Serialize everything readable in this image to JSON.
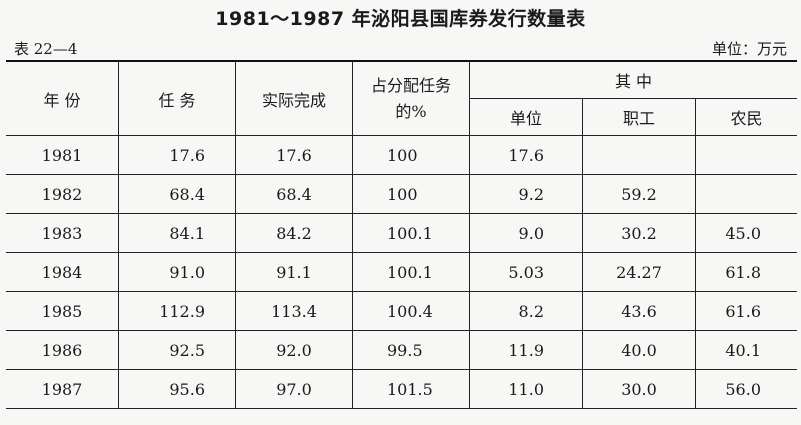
{
  "title": "1981～1987 年泌阳县国库券发行数量表",
  "table_no": "表 22—4",
  "unit": "单位：万元",
  "headers": {
    "year": "年 份",
    "task": "任 务",
    "done": "实际完成",
    "pct": "占分配任务的%",
    "among": "其 中",
    "unit_col": "单位",
    "staff": "职工",
    "farmer": "农民"
  },
  "rows": [
    {
      "year": "1981",
      "task": "17.6",
      "done": "17.6",
      "pct": "100",
      "unit": "17.6",
      "staff": "",
      "farmer": ""
    },
    {
      "year": "1982",
      "task": "68.4",
      "done": "68.4",
      "pct": "100",
      "unit": "9.2",
      "staff": "59.2",
      "farmer": ""
    },
    {
      "year": "1983",
      "task": "84.1",
      "done": "84.2",
      "pct": "100.1",
      "unit": "9.0",
      "staff": "30.2",
      "farmer": "45.0"
    },
    {
      "year": "1984",
      "task": "91.0",
      "done": "91.1",
      "pct": "100.1",
      "unit": "5.03",
      "staff": "24.27",
      "farmer": "61.8"
    },
    {
      "year": "1985",
      "task": "112.9",
      "done": "113.4",
      "pct": "100.4",
      "unit": "8.2",
      "staff": "43.6",
      "farmer": "61.6"
    },
    {
      "year": "1986",
      "task": "92.5",
      "done": "92.0",
      "pct": "99.5",
      "unit": "11.9",
      "staff": "40.0",
      "farmer": "40.1"
    },
    {
      "year": "1987",
      "task": "95.6",
      "done": "97.0",
      "pct": "101.5",
      "unit": "11.0",
      "staff": "30.0",
      "farmer": "56.0"
    }
  ]
}
